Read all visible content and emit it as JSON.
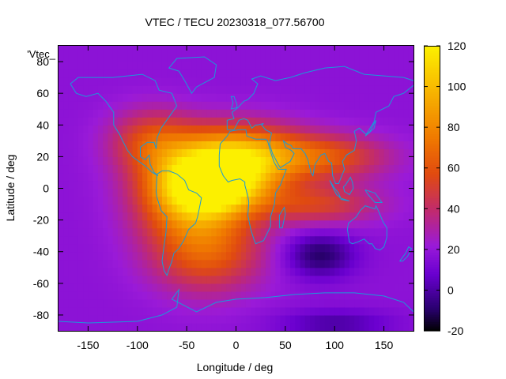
{
  "chart_data": {
    "type": "heatmap",
    "title": "VTEC / TECU 20230318_077.56700",
    "xlabel": "Longitude / deg",
    "ylabel": "Latitude / deg",
    "series_label": "'Vtec_",
    "xlim": [
      -180,
      180
    ],
    "ylim": [
      -90,
      90
    ],
    "x_ticks": [
      -150,
      -100,
      -50,
      0,
      50,
      100,
      150
    ],
    "y_ticks": [
      -80,
      -60,
      -40,
      -20,
      0,
      20,
      40,
      60,
      80
    ],
    "colorbar": {
      "range": [
        -20,
        120
      ],
      "ticks": [
        -20,
        0,
        20,
        40,
        60,
        80,
        100,
        120
      ],
      "palette": [
        "#000000",
        "#2a0070",
        "#6a00d0",
        "#9a1ad8",
        "#c02a70",
        "#e04a10",
        "#f07a00",
        "#f8b800",
        "#fcf000"
      ],
      "palette_stops": [
        0,
        0.08,
        0.2,
        0.3,
        0.42,
        0.55,
        0.68,
        0.85,
        1
      ]
    },
    "background_vtec": 18,
    "features": [
      {
        "name": "equatorial-anomaly-north-atlantic-africa",
        "lon": 0,
        "lat": 20,
        "peak_vtec": 98,
        "lon_spread": 45,
        "lat_spread": 14
      },
      {
        "name": "equatorial-anomaly-south-america",
        "lon": -45,
        "lat": -5,
        "peak_vtec": 85,
        "lon_spread": 38,
        "lat_spread": 18
      },
      {
        "name": "equatorial-anomaly-west-africa-equator",
        "lon": -20,
        "lat": 2,
        "peak_vtec": 88,
        "lon_spread": 35,
        "lat_spread": 12
      },
      {
        "name": "southern-midlatitude-atlantic",
        "lon": -30,
        "lat": -40,
        "peak_vtec": 62,
        "lon_spread": 40,
        "lat_spread": 18
      },
      {
        "name": "northern-crest-asia",
        "lon": 90,
        "lat": 20,
        "peak_vtec": 58,
        "lon_spread": 45,
        "lat_spread": 10
      },
      {
        "name": "southern-crest-indian-ocean",
        "lon": 80,
        "lat": -10,
        "peak_vtec": 52,
        "lon_spread": 45,
        "lat_spread": 9
      },
      {
        "name": "north-america-afternoon",
        "lon": -85,
        "lat": 30,
        "peak_vtec": 55,
        "lon_spread": 30,
        "lat_spread": 14
      },
      {
        "name": "low-indian-ocean",
        "lon": 85,
        "lat": -42,
        "peak_vtec": -10,
        "lon_spread": 25,
        "lat_spread": 10
      },
      {
        "name": "low-antarctic",
        "lon": 100,
        "lat": -85,
        "peak_vtec": 0,
        "lon_spread": 40,
        "lat_spread": 6
      }
    ]
  }
}
